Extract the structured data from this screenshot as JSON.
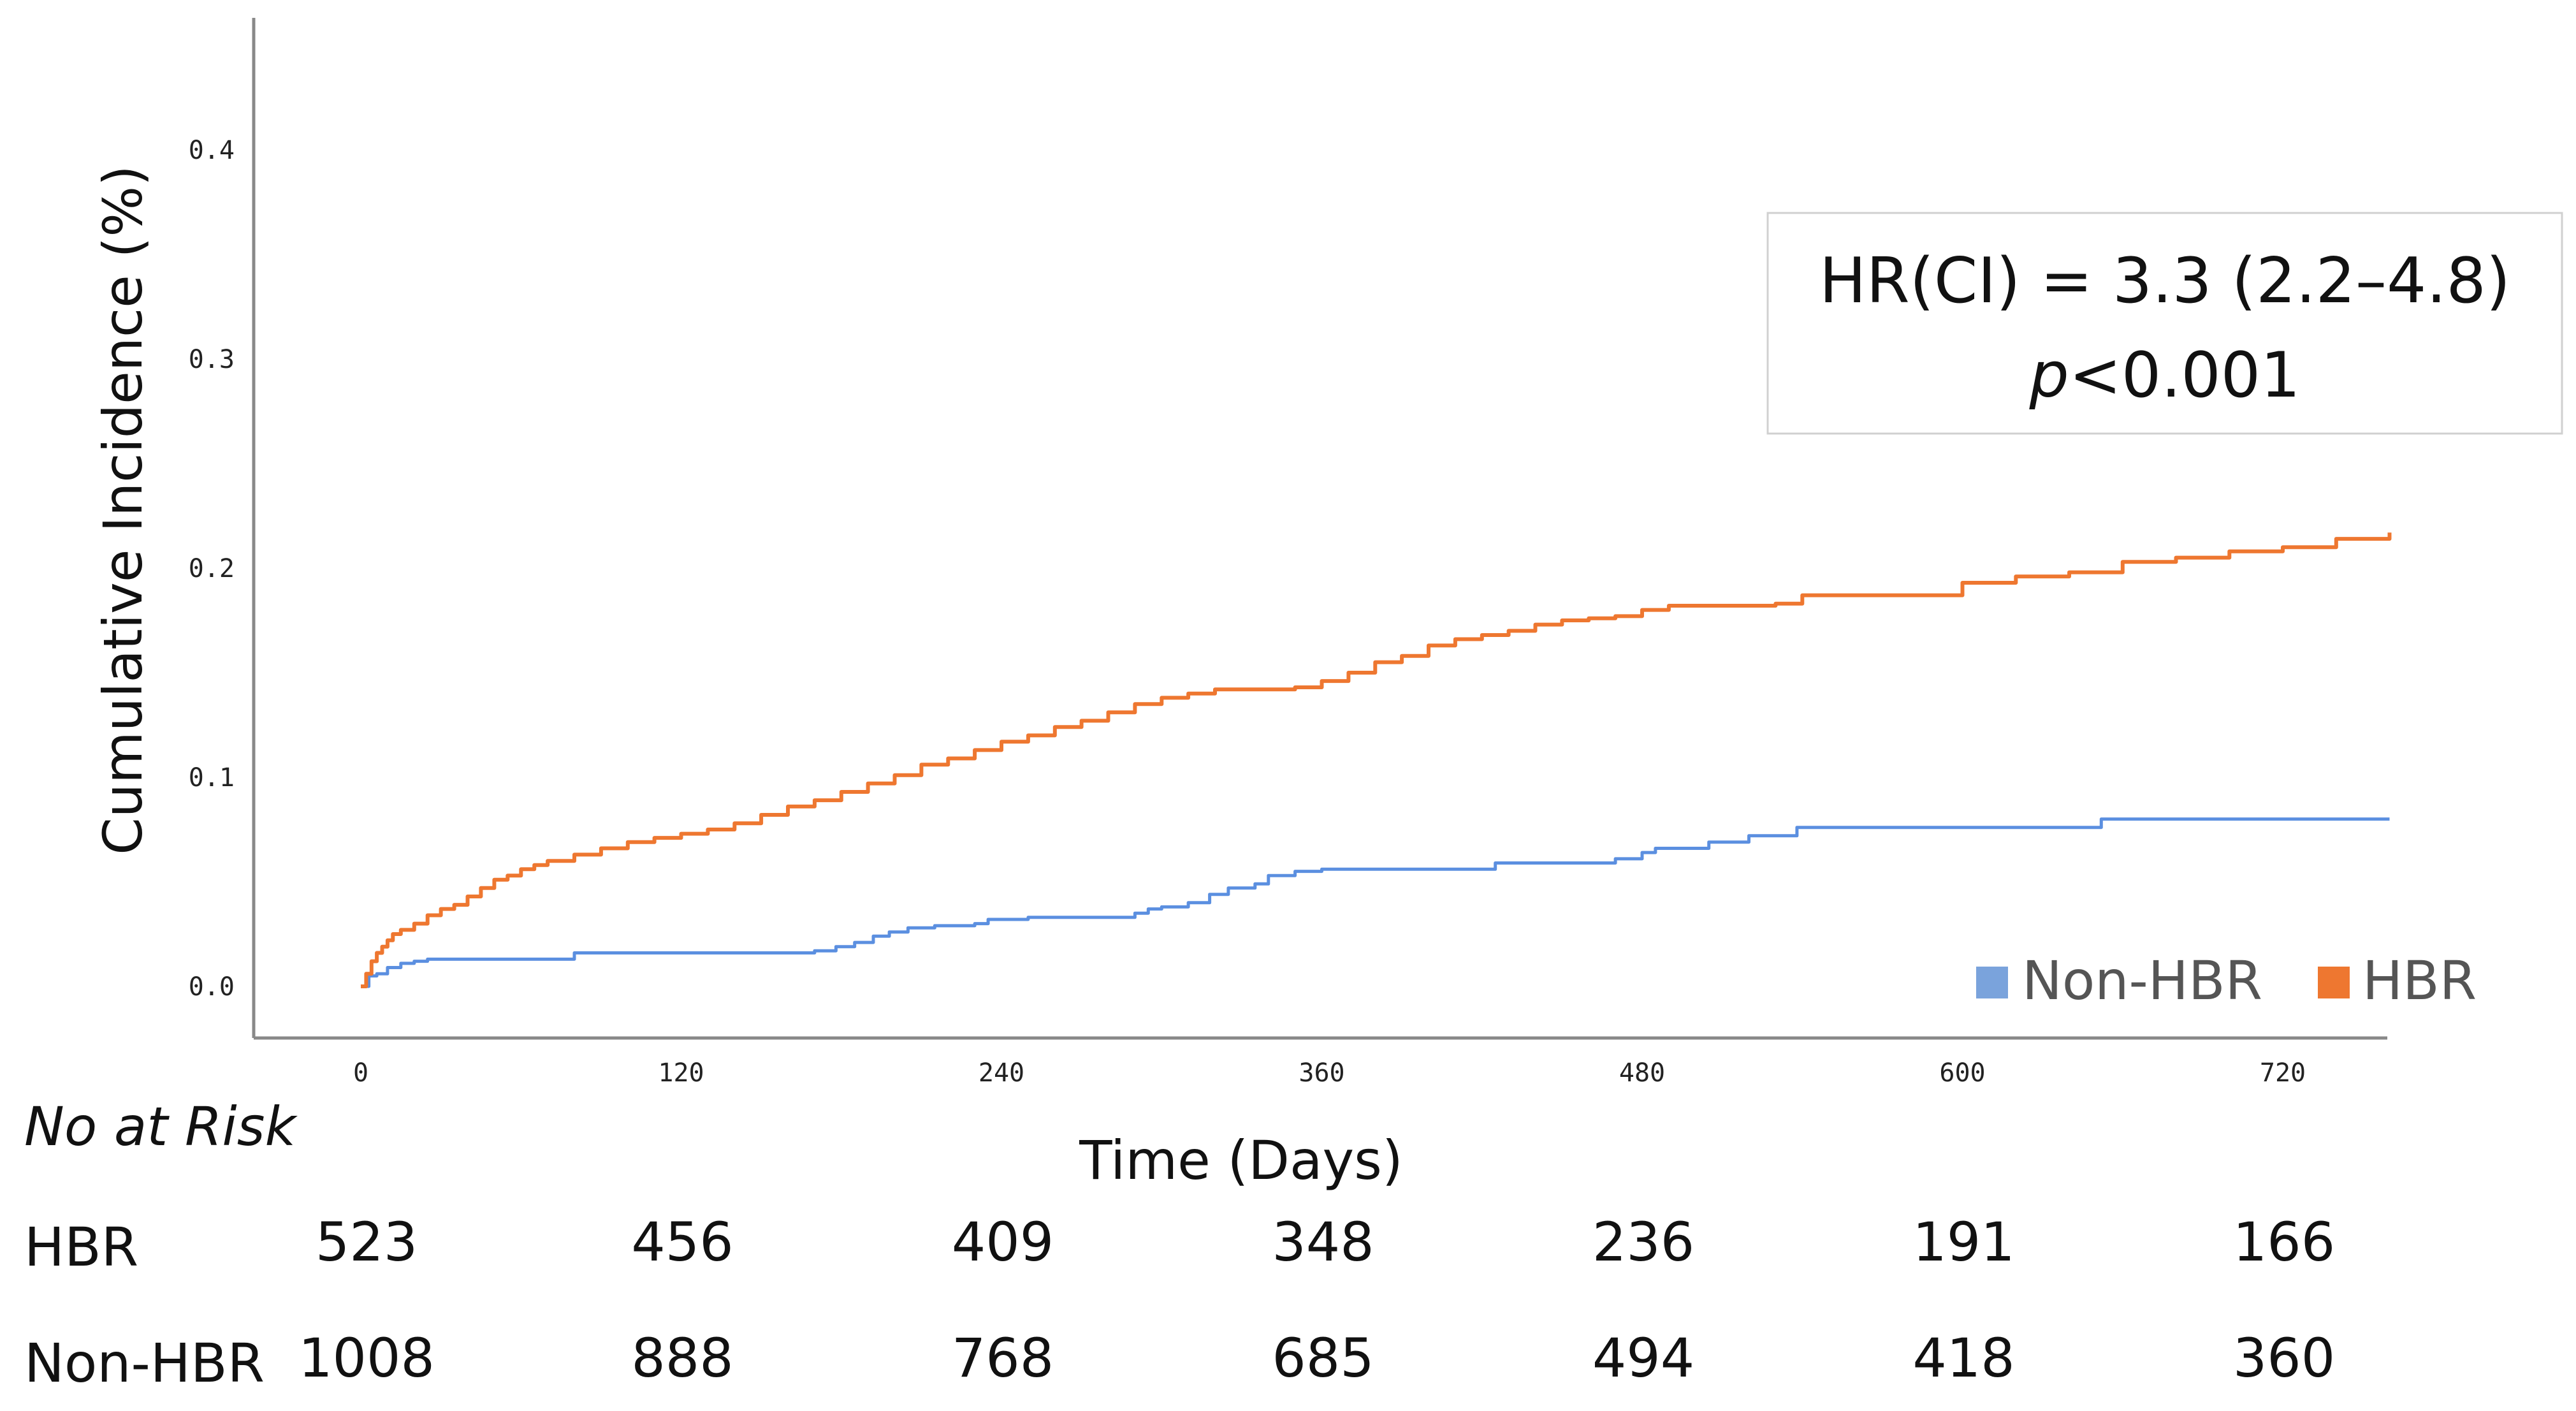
{
  "chart_data": {
    "type": "line",
    "title": "",
    "xlabel": "Time (Days)",
    "ylabel": "Cumulative Incidence (%)",
    "xlim": [
      -33,
      760
    ],
    "ylim": [
      -0.025,
      0.46
    ],
    "xticks": [
      0,
      120,
      240,
      360,
      480,
      600,
      720
    ],
    "yticks": [
      0.0,
      0.1,
      0.2,
      0.3,
      0.4
    ],
    "ytick_labels": [
      "0.0",
      "0.1",
      "0.2",
      "0.3",
      "0.4"
    ],
    "grid": false,
    "legend": {
      "position": "bottom-right"
    },
    "annotation": {
      "line1": "HR(CI) = 3.3 (2.2–4.8)",
      "p_symbol": "p",
      "p_rest": "<0.001"
    },
    "series": [
      {
        "name": "Non-HBR",
        "color": "#5b8fe0",
        "legend_color": "#7aa3dc",
        "points": [
          [
            0,
            0.0
          ],
          [
            3,
            0.005
          ],
          [
            6,
            0.006
          ],
          [
            10,
            0.009
          ],
          [
            15,
            0.011
          ],
          [
            20,
            0.012
          ],
          [
            25,
            0.013
          ],
          [
            40,
            0.013
          ],
          [
            60,
            0.013
          ],
          [
            78,
            0.013
          ],
          [
            80,
            0.016
          ],
          [
            120,
            0.016
          ],
          [
            160,
            0.016
          ],
          [
            170,
            0.017
          ],
          [
            178,
            0.019
          ],
          [
            185,
            0.021
          ],
          [
            192,
            0.024
          ],
          [
            198,
            0.026
          ],
          [
            205,
            0.028
          ],
          [
            215,
            0.029
          ],
          [
            230,
            0.03
          ],
          [
            235,
            0.032
          ],
          [
            250,
            0.033
          ],
          [
            275,
            0.033
          ],
          [
            290,
            0.035
          ],
          [
            295,
            0.037
          ],
          [
            300,
            0.038
          ],
          [
            310,
            0.04
          ],
          [
            318,
            0.044
          ],
          [
            325,
            0.047
          ],
          [
            335,
            0.049
          ],
          [
            340,
            0.053
          ],
          [
            350,
            0.055
          ],
          [
            360,
            0.056
          ],
          [
            420,
            0.056
          ],
          [
            425,
            0.059
          ],
          [
            470,
            0.061
          ],
          [
            480,
            0.064
          ],
          [
            485,
            0.066
          ],
          [
            500,
            0.066
          ],
          [
            505,
            0.069
          ],
          [
            520,
            0.072
          ],
          [
            532,
            0.072
          ],
          [
            538,
            0.076
          ],
          [
            600,
            0.076
          ],
          [
            650,
            0.076
          ],
          [
            652,
            0.08
          ],
          [
            760,
            0.08
          ]
        ]
      },
      {
        "name": "HBR",
        "color": "#ee7730",
        "legend_color": "#ee7730",
        "points": [
          [
            0,
            0.0
          ],
          [
            2,
            0.006
          ],
          [
            4,
            0.012
          ],
          [
            6,
            0.016
          ],
          [
            8,
            0.019
          ],
          [
            10,
            0.022
          ],
          [
            12,
            0.025
          ],
          [
            15,
            0.027
          ],
          [
            20,
            0.03
          ],
          [
            25,
            0.034
          ],
          [
            30,
            0.037
          ],
          [
            35,
            0.039
          ],
          [
            40,
            0.043
          ],
          [
            45,
            0.047
          ],
          [
            50,
            0.051
          ],
          [
            55,
            0.053
          ],
          [
            60,
            0.056
          ],
          [
            65,
            0.058
          ],
          [
            70,
            0.06
          ],
          [
            80,
            0.063
          ],
          [
            90,
            0.066
          ],
          [
            100,
            0.069
          ],
          [
            110,
            0.071
          ],
          [
            120,
            0.073
          ],
          [
            130,
            0.075
          ],
          [
            140,
            0.078
          ],
          [
            150,
            0.082
          ],
          [
            160,
            0.086
          ],
          [
            170,
            0.089
          ],
          [
            180,
            0.093
          ],
          [
            190,
            0.097
          ],
          [
            200,
            0.101
          ],
          [
            210,
            0.106
          ],
          [
            220,
            0.109
          ],
          [
            230,
            0.113
          ],
          [
            240,
            0.117
          ],
          [
            250,
            0.12
          ],
          [
            260,
            0.124
          ],
          [
            270,
            0.127
          ],
          [
            280,
            0.131
          ],
          [
            290,
            0.135
          ],
          [
            300,
            0.138
          ],
          [
            310,
            0.14
          ],
          [
            320,
            0.142
          ],
          [
            340,
            0.142
          ],
          [
            350,
            0.143
          ],
          [
            360,
            0.146
          ],
          [
            370,
            0.15
          ],
          [
            380,
            0.155
          ],
          [
            390,
            0.158
          ],
          [
            400,
            0.163
          ],
          [
            410,
            0.166
          ],
          [
            420,
            0.168
          ],
          [
            430,
            0.17
          ],
          [
            440,
            0.173
          ],
          [
            450,
            0.175
          ],
          [
            460,
            0.176
          ],
          [
            470,
            0.177
          ],
          [
            480,
            0.18
          ],
          [
            490,
            0.182
          ],
          [
            510,
            0.182
          ],
          [
            530,
            0.183
          ],
          [
            540,
            0.187
          ],
          [
            580,
            0.187
          ],
          [
            600,
            0.193
          ],
          [
            620,
            0.196
          ],
          [
            640,
            0.198
          ],
          [
            660,
            0.203
          ],
          [
            680,
            0.205
          ],
          [
            700,
            0.208
          ],
          [
            720,
            0.21
          ],
          [
            740,
            0.214
          ],
          [
            760,
            0.217
          ]
        ]
      }
    ]
  },
  "risk_table": {
    "title": "No at Risk",
    "rows": [
      {
        "label": "HBR",
        "values": [
          "523",
          "456",
          "409",
          "348",
          "236",
          "191",
          "166"
        ]
      },
      {
        "label": "Non-HBR",
        "values": [
          "1008",
          "888",
          "768",
          "685",
          "494",
          "418",
          "360"
        ]
      }
    ]
  }
}
